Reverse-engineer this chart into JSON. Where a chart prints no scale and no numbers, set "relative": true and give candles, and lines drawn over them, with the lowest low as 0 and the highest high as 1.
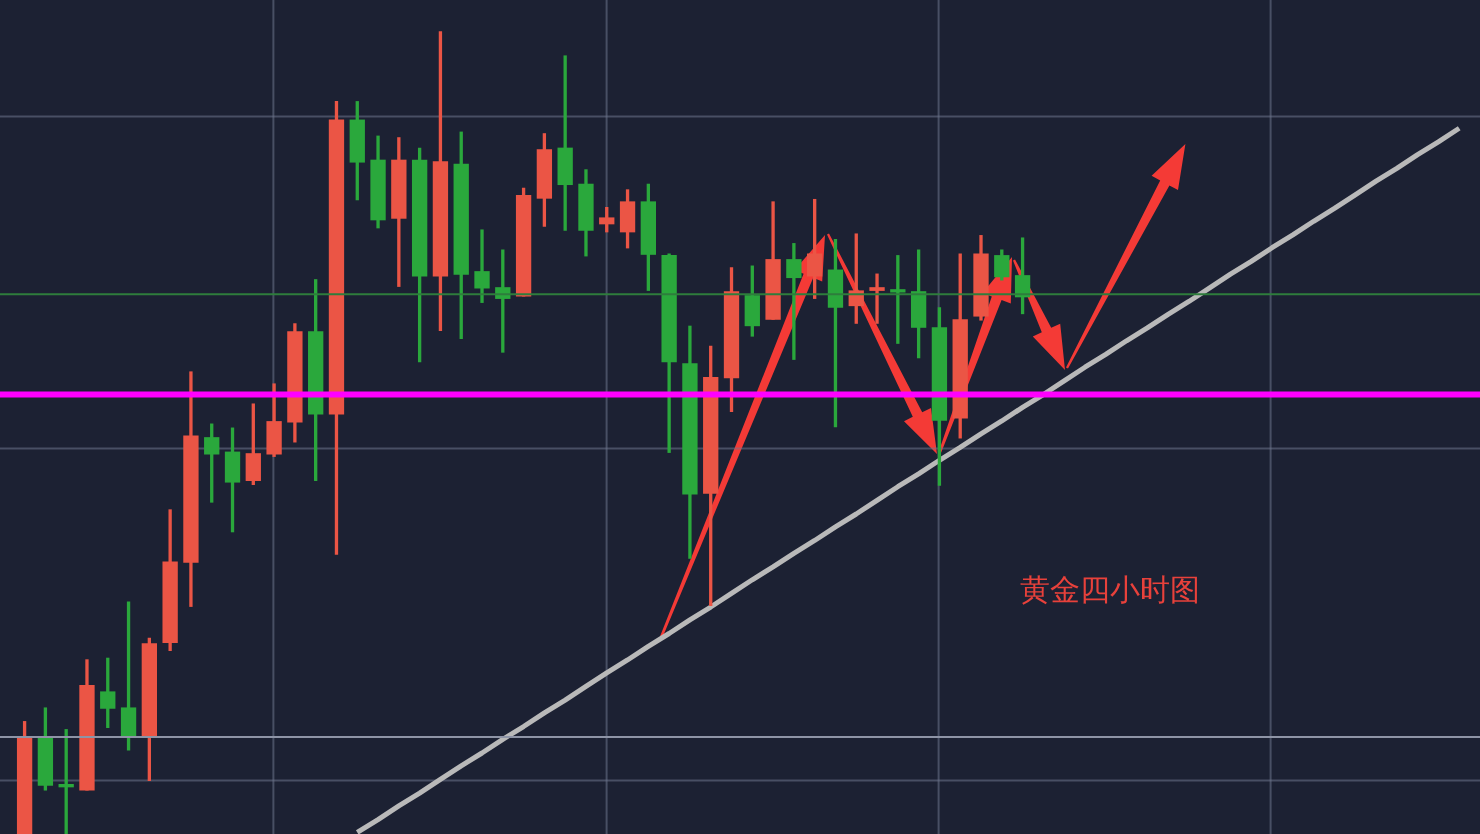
{
  "chart_data": {
    "type": "candlestick",
    "relative": true,
    "grid": true,
    "tick_labels": false,
    "categories": [
      null,
      null,
      null,
      null,
      null,
      null,
      null,
      null,
      null,
      null,
      null,
      null,
      null,
      null,
      null,
      null,
      null,
      null,
      null,
      null,
      null,
      null,
      null,
      null,
      null,
      null,
      null,
      null,
      null,
      null,
      null,
      null,
      null,
      null,
      null,
      null,
      null,
      null,
      null,
      null,
      null,
      null,
      null,
      null,
      null,
      null,
      null,
      null,
      null,
      null,
      null,
      null,
      null,
      null,
      null,
      null,
      null,
      null,
      null,
      null,
      null,
      null,
      null,
      null,
      null,
      null,
      null,
      null,
      null,
      null
    ],
    "ohlc": [
      [
        0,
        0.14,
        0,
        0.12
      ],
      [
        0.12,
        0.157,
        0.055,
        0.061
      ],
      [
        0.061,
        0.13,
        0,
        0.059
      ],
      [
        0.055,
        0.217,
        0.055,
        0.185
      ],
      [
        0.177,
        0.219,
        0.133,
        0.157
      ],
      [
        0.157,
        0.289,
        0.105,
        0.122
      ],
      [
        0.122,
        0.244,
        0.067,
        0.237
      ],
      [
        0.239,
        0.404,
        0.229,
        0.339
      ],
      [
        0.339,
        0.576,
        0.284,
        0.496
      ],
      [
        0.494,
        0.511,
        0.414,
        0.474
      ],
      [
        0.476,
        0.506,
        0.377,
        0.439
      ],
      [
        0.441,
        0.536,
        0.436,
        0.474
      ],
      [
        0.474,
        0.561,
        0.471,
        0.514
      ],
      [
        0.514,
        0.636,
        0.489,
        0.626
      ],
      [
        0.626,
        0.691,
        0.441,
        0.524
      ],
      [
        0.524,
        0.913,
        0.349,
        0.89
      ],
      [
        0.89,
        0.913,
        0.791,
        0.838
      ],
      [
        0.84,
        0.87,
        0.756,
        0.766
      ],
      [
        0.768,
        0.868,
        0.683,
        0.84
      ],
      [
        0.84,
        0.855,
        0.589,
        0.696
      ],
      [
        0.696,
        1,
        0.628,
        0.838
      ],
      [
        0.835,
        0.875,
        0.618,
        0.698
      ],
      [
        0.701,
        0.753,
        0.663,
        0.681
      ],
      [
        0.681,
        0.728,
        0.601,
        0.668
      ],
      [
        0.671,
        0.805,
        0.671,
        0.796
      ],
      [
        0.793,
        0.873,
        0.758,
        0.853
      ],
      [
        0.855,
        0.97,
        0.753,
        0.81
      ],
      [
        0.81,
        0.828,
        0.721,
        0.753
      ],
      [
        0.761,
        0.781,
        0.751,
        0.768
      ],
      [
        0.751,
        0.803,
        0.731,
        0.788
      ],
      [
        0.788,
        0.81,
        0.678,
        0.723
      ],
      [
        0.721,
        0.723,
        0.476,
        0.589
      ],
      [
        0.586,
        0.633,
        0.344,
        0.424
      ],
      [
        0.425,
        0.608,
        0.285,
        0.569
      ],
      [
        0.569,
        0.706,
        0.527,
        0.676
      ],
      [
        0.671,
        0.708,
        0.621,
        0.634
      ],
      [
        0.642,
        0.788,
        0.642,
        0.716
      ],
      [
        0.716,
        0.736,
        0.592,
        0.694
      ],
      [
        0.696,
        0.791,
        0.668,
        0.723
      ],
      [
        0.703,
        0.741,
        0.508,
        0.657
      ],
      [
        0.659,
        0.748,
        0.637,
        0.677
      ],
      [
        0.678,
        0.698,
        0.637,
        0.681
      ],
      [
        0.678,
        0.721,
        0.612,
        0.676
      ],
      [
        0.676,
        0.728,
        0.594,
        0.632
      ],
      [
        0.631,
        0.656,
        0.435,
        0.516
      ],
      [
        0.519,
        0.723,
        0.494,
        0.641
      ],
      [
        0.646,
        0.746,
        0.641,
        0.723
      ],
      [
        0.721,
        0.728,
        0.691,
        0.695
      ],
      [
        0.696,
        0.743,
        0.649,
        0.67
      ],
      null,
      null,
      null,
      null,
      null,
      null,
      null,
      null,
      null,
      null,
      null,
      null,
      null,
      null,
      null,
      null,
      null,
      null,
      null,
      null,
      null
    ],
    "colors": [
      "#eb5545",
      "#2aa83c",
      "#2aa83c",
      "#eb5545",
      "#2aa83c",
      "#2aa83c",
      "#eb5545",
      "#eb5545",
      "#eb5545",
      "#2aa83c",
      "#2aa83c",
      "#eb5545",
      "#eb5545",
      "#eb5545",
      "#2aa83c",
      "#eb5545",
      "#2aa83c",
      "#2aa83c",
      "#eb5545",
      "#2aa83c",
      "#eb5545",
      "#2aa83c",
      "#2aa83c",
      "#2aa83c",
      "#eb5545",
      "#eb5545",
      "#2aa83c",
      "#2aa83c",
      "#eb5545",
      "#eb5545",
      "#2aa83c",
      "#2aa83c",
      "#2aa83c",
      "#eb5545",
      "#eb5545",
      "#2aa83c",
      "#eb5545",
      "#2aa83c",
      "#eb5545",
      "#2aa83c",
      "#eb5545",
      "#eb5545",
      "#2aa83c",
      "#2aa83c",
      "#2aa83c",
      "#eb5545",
      "#eb5545",
      "#2aa83c",
      "#2aa83c",
      null,
      null,
      null,
      null,
      null,
      null,
      null,
      null,
      null,
      null,
      null,
      null,
      null,
      null,
      null,
      null,
      null,
      null,
      null,
      null,
      null
    ],
    "series": [
      {
        "type": "line",
        "color": "#b9b9b9",
        "values": [
          null,
          null,
          null,
          null,
          null,
          null,
          null,
          null,
          null,
          null,
          null,
          null,
          null,
          null,
          null,
          null,
          0.002,
          0.018,
          0.035,
          0.051,
          0.068,
          0.085,
          0.101,
          0.118,
          0.134,
          0.151,
          0.167,
          0.184,
          0.201,
          0.217,
          0.234,
          0.25,
          0.267,
          0.283,
          0.3,
          0.317,
          0.333,
          0.35,
          0.366,
          0.383,
          0.399,
          0.416,
          0.433,
          0.449,
          0.466,
          0.482,
          0.499,
          0.515,
          0.532,
          0.548,
          0.565,
          0.582,
          0.598,
          0.615,
          0.631,
          0.648,
          0.664,
          0.681,
          0.698,
          0.714,
          0.731,
          0.747,
          0.764,
          0.78,
          0.797,
          0.814,
          0.83,
          0.847,
          0.863,
          0.88
        ]
      }
    ],
    "ref_lines": [
      {
        "axis": "y",
        "value": 0.548,
        "color": "#ff00ff"
      },
      {
        "axis": "y",
        "value": 0.673,
        "color": "#2e7d3c"
      },
      {
        "axis": "y",
        "value": 0.121,
        "color": "#8e94a6"
      }
    ],
    "annotations": [
      "黄金四小时图"
    ]
  }
}
